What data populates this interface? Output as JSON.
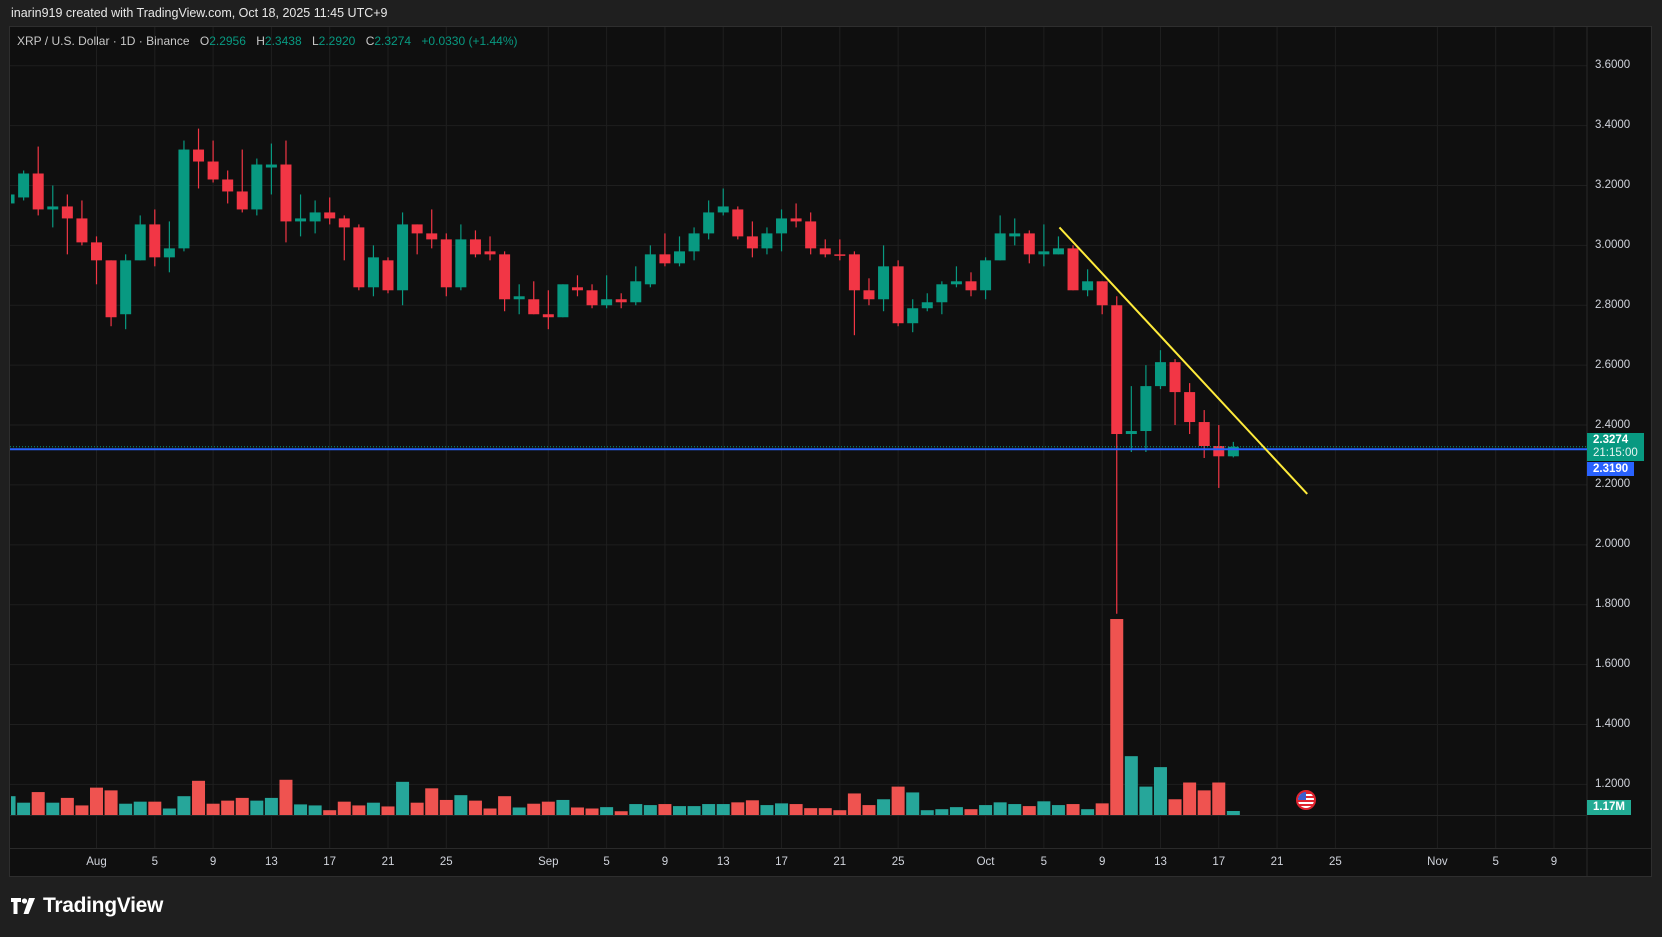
{
  "attribution": "inarin919 created with TradingView.com, Oct 18, 2025 11:45 UTC+9",
  "legend": {
    "symbol": "XRP / U.S. Dollar · 1D · Binance",
    "o_label": "O",
    "o": "2.2956",
    "h_label": "H",
    "h": "2.3438",
    "l_label": "L",
    "l": "2.2920",
    "c_label": "C",
    "c": "2.3274",
    "change": "+0.0330 (+1.44%)"
  },
  "price_axis": {
    "labels": [
      "3.6000",
      "3.4000",
      "3.2000",
      "3.0000",
      "2.8000",
      "2.6000",
      "2.4000",
      "2.2000",
      "2.0000",
      "1.8000",
      "1.6000",
      "1.4000",
      "1.2000"
    ],
    "last_price": "2.3274",
    "countdown": "21:15:00",
    "bid_price": "2.3190",
    "volume_last": "1.17M"
  },
  "brand": "TradingView",
  "colors": {
    "up": "#089981",
    "down": "#f23645",
    "vol_up": "#26a69a",
    "vol_down": "#ef5350",
    "price_line": "#2962ff",
    "trendline": "#ffeb3b",
    "grid": "#1f1f1f"
  },
  "icons": {
    "event_marker": "us-flag-icon",
    "logo": "tradingview-logo-icon"
  },
  "chart_data": {
    "type": "candlestick",
    "symbol": "XRP / U.S. Dollar",
    "interval": "1D",
    "exchange": "Binance",
    "ylim": [
      1.1,
      3.7
    ],
    "grid": true,
    "volume_unit": "M",
    "x_ticks": [
      {
        "label": "Aug",
        "date": "2025-08-01"
      },
      {
        "label": "5",
        "date": "2025-08-05"
      },
      {
        "label": "9",
        "date": "2025-08-09"
      },
      {
        "label": "13",
        "date": "2025-08-13"
      },
      {
        "label": "17",
        "date": "2025-08-17"
      },
      {
        "label": "21",
        "date": "2025-08-21"
      },
      {
        "label": "25",
        "date": "2025-08-25"
      },
      {
        "label": "Sep",
        "date": "2025-09-01"
      },
      {
        "label": "5",
        "date": "2025-09-05"
      },
      {
        "label": "9",
        "date": "2025-09-09"
      },
      {
        "label": "13",
        "date": "2025-09-13"
      },
      {
        "label": "17",
        "date": "2025-09-17"
      },
      {
        "label": "21",
        "date": "2025-09-21"
      },
      {
        "label": "25",
        "date": "2025-09-25"
      },
      {
        "label": "Oct",
        "date": "2025-10-01"
      },
      {
        "label": "5",
        "date": "2025-10-05"
      },
      {
        "label": "9",
        "date": "2025-10-09"
      },
      {
        "label": "13",
        "date": "2025-10-13"
      },
      {
        "label": "17",
        "date": "2025-10-17"
      },
      {
        "label": "21",
        "date": "2025-10-21"
      },
      {
        "label": "25",
        "date": "2025-10-25"
      },
      {
        "label": "Nov",
        "date": "2025-11-01"
      },
      {
        "label": "5",
        "date": "2025-11-05"
      },
      {
        "label": "9",
        "date": "2025-11-09"
      }
    ],
    "candles_columns": [
      "date",
      "open",
      "high",
      "low",
      "close",
      "volume"
    ],
    "candles": [
      [
        "2025-07-26",
        3.14,
        3.18,
        3.13,
        3.17,
        5.5
      ],
      [
        "2025-07-27",
        3.16,
        3.25,
        3.15,
        3.24,
        3.6
      ],
      [
        "2025-07-28",
        3.24,
        3.33,
        3.1,
        3.12,
        6.7
      ],
      [
        "2025-07-29",
        3.12,
        3.2,
        3.06,
        3.13,
        3.6
      ],
      [
        "2025-07-30",
        3.13,
        3.17,
        2.97,
        3.09,
        5.0
      ],
      [
        "2025-07-31",
        3.09,
        3.15,
        3.0,
        3.01,
        2.8
      ],
      [
        "2025-08-01",
        3.01,
        3.03,
        2.87,
        2.95,
        8.0
      ],
      [
        "2025-08-02",
        2.95,
        2.95,
        2.73,
        2.76,
        7.2
      ],
      [
        "2025-08-03",
        2.77,
        2.97,
        2.72,
        2.95,
        3.3
      ],
      [
        "2025-08-04",
        2.95,
        3.1,
        2.95,
        3.07,
        3.9
      ],
      [
        "2025-08-05",
        3.07,
        3.12,
        2.93,
        2.96,
        3.9
      ],
      [
        "2025-08-06",
        2.96,
        3.08,
        2.91,
        2.99,
        1.9
      ],
      [
        "2025-08-07",
        2.99,
        3.35,
        2.98,
        3.32,
        5.5
      ],
      [
        "2025-08-08",
        3.32,
        3.39,
        3.19,
        3.28,
        10.0
      ],
      [
        "2025-08-09",
        3.28,
        3.35,
        3.21,
        3.22,
        3.3
      ],
      [
        "2025-08-10",
        3.22,
        3.25,
        3.14,
        3.18,
        4.2
      ],
      [
        "2025-08-11",
        3.18,
        3.32,
        3.11,
        3.12,
        5.0
      ],
      [
        "2025-08-12",
        3.12,
        3.29,
        3.1,
        3.27,
        4.2
      ],
      [
        "2025-08-13",
        3.26,
        3.34,
        3.17,
        3.27,
        5.0
      ],
      [
        "2025-08-14",
        3.27,
        3.35,
        3.01,
        3.08,
        10.3
      ],
      [
        "2025-08-15",
        3.08,
        3.17,
        3.03,
        3.09,
        3.1
      ],
      [
        "2025-08-16",
        3.08,
        3.15,
        3.04,
        3.11,
        2.8
      ],
      [
        "2025-08-17",
        3.11,
        3.16,
        3.07,
        3.09,
        1.4
      ],
      [
        "2025-08-18",
        3.09,
        3.1,
        2.95,
        3.06,
        3.9
      ],
      [
        "2025-08-19",
        3.06,
        3.07,
        2.85,
        2.86,
        2.8
      ],
      [
        "2025-08-20",
        2.86,
        3.0,
        2.83,
        2.96,
        3.6
      ],
      [
        "2025-08-21",
        2.95,
        2.96,
        2.84,
        2.85,
        2.5
      ],
      [
        "2025-08-22",
        2.85,
        3.11,
        2.8,
        3.07,
        9.7
      ],
      [
        "2025-08-23",
        3.07,
        3.07,
        2.97,
        3.04,
        3.6
      ],
      [
        "2025-08-24",
        3.04,
        3.12,
        2.99,
        3.02,
        7.8
      ],
      [
        "2025-08-25",
        3.02,
        3.04,
        2.83,
        2.86,
        4.4
      ],
      [
        "2025-08-26",
        2.86,
        3.07,
        2.85,
        3.02,
        5.8
      ],
      [
        "2025-08-27",
        3.02,
        3.05,
        2.96,
        2.97,
        4.2
      ],
      [
        "2025-08-28",
        2.98,
        3.03,
        2.95,
        2.97,
        1.9
      ],
      [
        "2025-08-29",
        2.97,
        2.98,
        2.78,
        2.82,
        5.5
      ],
      [
        "2025-08-30",
        2.82,
        2.87,
        2.77,
        2.83,
        2.2
      ],
      [
        "2025-08-31",
        2.82,
        2.88,
        2.77,
        2.77,
        3.3
      ],
      [
        "2025-09-01",
        2.77,
        2.85,
        2.72,
        2.76,
        3.9
      ],
      [
        "2025-09-02",
        2.76,
        2.87,
        2.76,
        2.87,
        4.4
      ],
      [
        "2025-09-03",
        2.86,
        2.9,
        2.83,
        2.85,
        2.2
      ],
      [
        "2025-09-04",
        2.85,
        2.87,
        2.79,
        2.8,
        1.9
      ],
      [
        "2025-09-05",
        2.8,
        2.9,
        2.79,
        2.82,
        2.3
      ],
      [
        "2025-09-06",
        2.82,
        2.84,
        2.79,
        2.81,
        1.1
      ],
      [
        "2025-09-07",
        2.81,
        2.93,
        2.8,
        2.88,
        3.2
      ],
      [
        "2025-09-08",
        2.87,
        3.0,
        2.86,
        2.97,
        2.9
      ],
      [
        "2025-09-09",
        2.97,
        3.04,
        2.93,
        2.94,
        3.2
      ],
      [
        "2025-09-10",
        2.94,
        3.03,
        2.93,
        2.98,
        2.6
      ],
      [
        "2025-09-11",
        2.98,
        3.06,
        2.95,
        3.04,
        2.6
      ],
      [
        "2025-09-12",
        3.04,
        3.15,
        3.02,
        3.11,
        3.2
      ],
      [
        "2025-09-13",
        3.11,
        3.19,
        3.1,
        3.13,
        3.2
      ],
      [
        "2025-09-14",
        3.12,
        3.13,
        3.02,
        3.03,
        3.7
      ],
      [
        "2025-09-15",
        3.03,
        3.08,
        2.96,
        2.99,
        4.3
      ],
      [
        "2025-09-16",
        2.99,
        3.06,
        2.97,
        3.04,
        2.9
      ],
      [
        "2025-09-17",
        3.04,
        3.12,
        2.98,
        3.09,
        3.4
      ],
      [
        "2025-09-18",
        3.09,
        3.14,
        3.06,
        3.08,
        3.2
      ],
      [
        "2025-09-19",
        3.08,
        3.11,
        2.97,
        2.99,
        2.0
      ],
      [
        "2025-09-20",
        2.99,
        3.02,
        2.96,
        2.97,
        2.0
      ],
      [
        "2025-09-21",
        2.97,
        3.02,
        2.95,
        2.965,
        1.4
      ],
      [
        "2025-09-22",
        2.97,
        2.98,
        2.7,
        2.85,
        6.3
      ],
      [
        "2025-09-23",
        2.85,
        2.89,
        2.8,
        2.82,
        2.9
      ],
      [
        "2025-09-24",
        2.82,
        3.0,
        2.78,
        2.93,
        4.6
      ],
      [
        "2025-09-25",
        2.93,
        2.95,
        2.73,
        2.74,
        8.3
      ],
      [
        "2025-09-26",
        2.74,
        2.82,
        2.71,
        2.79,
        6.6
      ],
      [
        "2025-09-27",
        2.79,
        2.84,
        2.78,
        2.81,
        1.4
      ],
      [
        "2025-09-28",
        2.81,
        2.88,
        2.77,
        2.87,
        1.7
      ],
      [
        "2025-09-29",
        2.87,
        2.93,
        2.86,
        2.88,
        2.3
      ],
      [
        "2025-09-30",
        2.88,
        2.91,
        2.83,
        2.85,
        1.7
      ],
      [
        "2025-10-01",
        2.85,
        2.96,
        2.82,
        2.95,
        2.9
      ],
      [
        "2025-10-02",
        2.95,
        3.1,
        2.95,
        3.04,
        3.7
      ],
      [
        "2025-10-03",
        3.03,
        3.09,
        3.0,
        3.04,
        3.2
      ],
      [
        "2025-10-04",
        3.04,
        3.05,
        2.94,
        2.97,
        2.6
      ],
      [
        "2025-10-05",
        2.97,
        3.07,
        2.93,
        2.98,
        4.0
      ],
      [
        "2025-10-06",
        2.97,
        3.03,
        2.97,
        2.99,
        2.9
      ],
      [
        "2025-10-07",
        2.99,
        3.0,
        2.85,
        2.85,
        3.2
      ],
      [
        "2025-10-08",
        2.85,
        2.92,
        2.83,
        2.88,
        1.7
      ],
      [
        "2025-10-09",
        2.88,
        2.88,
        2.77,
        2.8,
        3.4
      ],
      [
        "2025-10-10",
        2.8,
        2.83,
        1.77,
        2.37,
        57.3
      ],
      [
        "2025-10-11",
        2.37,
        2.53,
        2.31,
        2.38,
        17.2
      ],
      [
        "2025-10-12",
        2.38,
        2.6,
        2.31,
        2.53,
        8.3
      ],
      [
        "2025-10-13",
        2.53,
        2.65,
        2.52,
        2.61,
        14.0
      ],
      [
        "2025-10-14",
        2.61,
        2.62,
        2.4,
        2.51,
        4.6
      ],
      [
        "2025-10-15",
        2.51,
        2.54,
        2.37,
        2.41,
        9.5
      ],
      [
        "2025-10-16",
        2.41,
        2.45,
        2.29,
        2.33,
        7.2
      ],
      [
        "2025-10-17",
        2.33,
        2.4,
        2.19,
        2.2956,
        9.5
      ],
      [
        "2025-10-18",
        2.2956,
        2.3438,
        2.292,
        2.3274,
        1.17
      ]
    ],
    "last_price": 2.3274,
    "horizontal_line": 2.319,
    "trendline": [
      [
        "2025-10-06",
        3.06
      ],
      [
        "2025-10-23",
        2.17
      ]
    ],
    "event_marker_date": "2025-10-23"
  }
}
